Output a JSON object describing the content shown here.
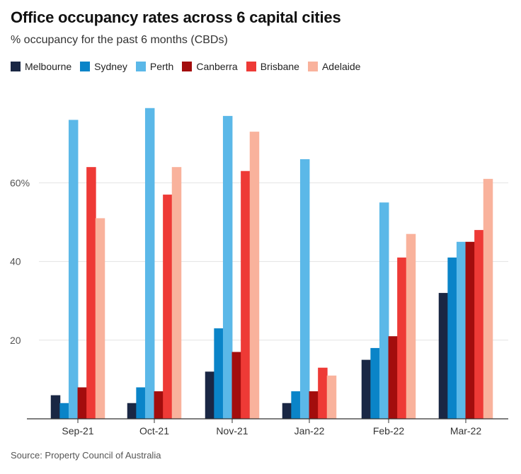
{
  "title": "Office occupancy rates across 6 capital cities",
  "subtitle": "% occupancy for the past 6 months (CBDs)",
  "source": "Source: Property Council of Australia",
  "chart_data": {
    "type": "bar",
    "title": "Office occupancy rates across 6 capital cities",
    "subtitle": "% occupancy for the past 6 months (CBDs)",
    "categories": [
      "Sep-21",
      "Oct-21",
      "Nov-21",
      "Jan-22",
      "Feb-22",
      "Mar-22"
    ],
    "series": [
      {
        "name": "Melbourne",
        "color": "#1a2744",
        "values": [
          6,
          4,
          12,
          4,
          15,
          32
        ]
      },
      {
        "name": "Sydney",
        "color": "#0a84c8",
        "values": [
          4,
          8,
          23,
          7,
          18,
          41
        ]
      },
      {
        "name": "Perth",
        "color": "#5bb8e8",
        "values": [
          76,
          79,
          77,
          66,
          55,
          45
        ]
      },
      {
        "name": "Canberra",
        "color": "#a30d0d",
        "values": [
          8,
          7,
          17,
          7,
          21,
          45
        ]
      },
      {
        "name": "Brisbane",
        "color": "#ee3a36",
        "values": [
          64,
          57,
          63,
          13,
          41,
          48
        ]
      },
      {
        "name": "Adelaide",
        "color": "#f9b29c",
        "values": [
          51,
          64,
          73,
          11,
          47,
          61
        ]
      }
    ],
    "y_ticks": [
      {
        "value": 20,
        "label": "20"
      },
      {
        "value": 40,
        "label": "40"
      },
      {
        "value": 60,
        "label": "60%"
      }
    ],
    "ylim": [
      0,
      80
    ],
    "grid": true,
    "legend": "top-left",
    "xlabel": "",
    "ylabel": ""
  }
}
